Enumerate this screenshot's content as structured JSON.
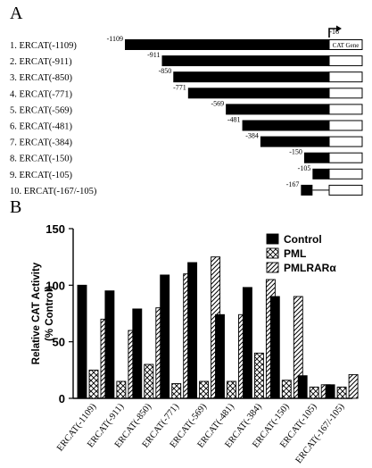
{
  "panel_a": {
    "label": "A",
    "constructs": [
      {
        "label": "1. ERCAT(-1109)",
        "start": -1109,
        "end": -16,
        "start_label": "-1109"
      },
      {
        "label": "2. ERCAT(-911)",
        "start": -911,
        "end": -16,
        "start_label": "-911"
      },
      {
        "label": "3. ERCAT(-850)",
        "start": -850,
        "end": -16,
        "start_label": "-850"
      },
      {
        "label": "4. ERCAT(-771)",
        "start": -771,
        "end": -16,
        "start_label": "-771"
      },
      {
        "label": "5. ERCAT(-569)",
        "start": -569,
        "end": -16,
        "start_label": "-569"
      },
      {
        "label": "6. ERCAT(-481)",
        "start": -481,
        "end": -16,
        "start_label": "-481"
      },
      {
        "label": "7. ERCAT(-384)",
        "start": -384,
        "end": -16,
        "start_label": "-384"
      },
      {
        "label": "8. ERCAT(-150)",
        "start": -150,
        "end": -16,
        "start_label": "-150"
      },
      {
        "label": "9. ERCAT(-105)",
        "start": -105,
        "end": -16,
        "start_label": "-105"
      },
      {
        "label": "10. ERCAT(-167/-105)",
        "start": -167,
        "end": -16,
        "start_label": "-167",
        "deletion": true
      }
    ],
    "tss_label": "-16",
    "gene_label": "CAT Gene"
  },
  "panel_b": {
    "label": "B"
  },
  "chart_data": {
    "type": "bar",
    "categories": [
      "ERCAT(-1109)",
      "ERCAT(-911)",
      "ERCAT(-850)",
      "ERCAT(-771)",
      "ERCAT(-569)",
      "ERCAT(-481)",
      "ERCAT(-384)",
      "ERCAT(-150)",
      "ERCAT(-105)",
      "ERCAT(-167/-105)"
    ],
    "series": [
      {
        "name": "Control",
        "values": [
          100,
          95,
          79,
          109,
          120,
          74,
          98,
          90,
          20,
          12
        ],
        "pattern": "solid"
      },
      {
        "name": "PML",
        "values": [
          25,
          15,
          30,
          13,
          15,
          15,
          40,
          16,
          10,
          10
        ],
        "pattern": "checker"
      },
      {
        "name": "PMLRARα",
        "values": [
          70,
          60,
          80,
          110,
          125,
          74,
          105,
          90,
          12,
          21
        ],
        "pattern": "hatch"
      }
    ],
    "ylabel": "Relative CAT Activity\n(% Control)",
    "ylim": [
      0,
      150
    ],
    "yticks": [
      "0",
      "50",
      "100",
      "150"
    ],
    "legend": "top-right",
    "grid": false
  },
  "colors": {
    "ink": "#000000",
    "paper": "#ffffff"
  }
}
